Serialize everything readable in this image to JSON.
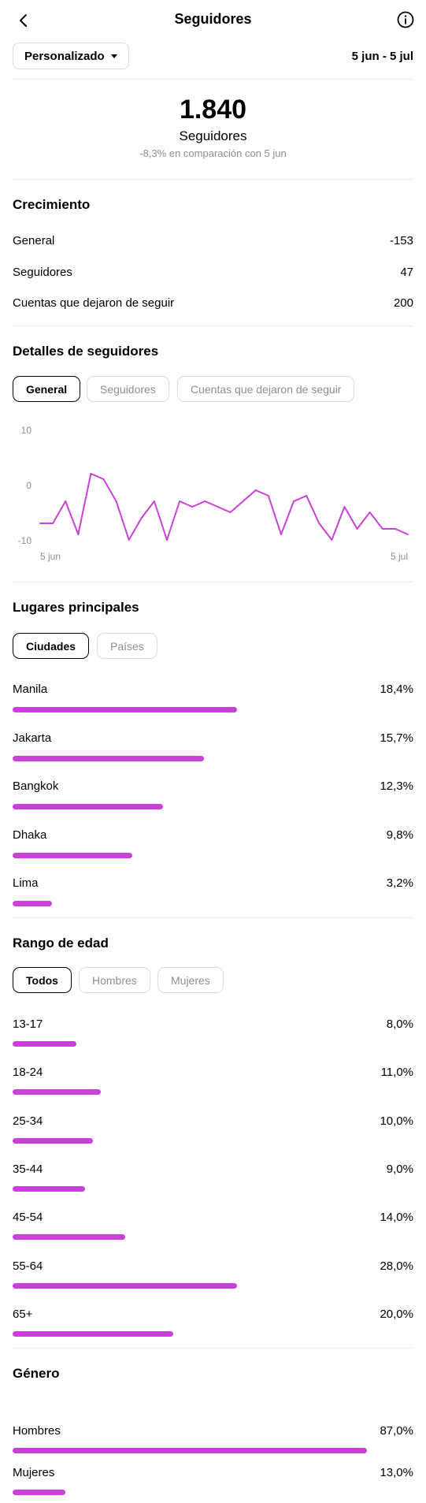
{
  "header": {
    "title": "Seguidores",
    "back_icon": "back-arrow-icon",
    "info_icon": "info-icon"
  },
  "filter": {
    "selected": "Personalizado",
    "date_range": "5 jun - 5 jul"
  },
  "summary": {
    "count": "1.840",
    "label": "Seguidores",
    "comparison": "-8,3% en comparación con 5 jun"
  },
  "growth": {
    "title": "Crecimiento",
    "rows": [
      {
        "label": "General",
        "value": "-153"
      },
      {
        "label": "Seguidores",
        "value": "47"
      },
      {
        "label": "Cuentas que dejaron de seguir",
        "value": "200"
      }
    ]
  },
  "details": {
    "title": "Detalles de seguidores",
    "tabs": [
      "General",
      "Seguidores",
      "Cuentas que dejaron de seguir"
    ],
    "active_tab": 0
  },
  "chart_data": {
    "type": "line",
    "x_start_label": "5 jun",
    "x_end_label": "5 jul",
    "y_ticks": [
      "10",
      "0",
      "-10"
    ],
    "ylim": [
      -10,
      10
    ],
    "grid": false,
    "color": "#c941d9",
    "values": [
      -7,
      -7,
      -3,
      -9,
      2,
      1,
      -3,
      -10,
      -6,
      -3,
      -10,
      -3,
      -4,
      -3,
      -4,
      -5,
      -3,
      -1,
      -2,
      -9,
      -3,
      -2,
      -7,
      -10,
      -4,
      -8,
      -5,
      -8,
      -8,
      -9
    ]
  },
  "places": {
    "title": "Lugares principales",
    "tabs": [
      "Ciudades",
      "Países"
    ],
    "active_tab": 0,
    "items": [
      {
        "label": "Manila",
        "value": "18,4%",
        "fraction": 0.184
      },
      {
        "label": "Jakarta",
        "value": "15,7%",
        "fraction": 0.157
      },
      {
        "label": "Bangkok",
        "value": "12,3%",
        "fraction": 0.123
      },
      {
        "label": "Dhaka",
        "value": "9,8%",
        "fraction": 0.098
      },
      {
        "label": "Lima",
        "value": "3,2%",
        "fraction": 0.032
      }
    ]
  },
  "age": {
    "title": "Rango de edad",
    "tabs": [
      "Todos",
      "Hombres",
      "Mujeres"
    ],
    "active_tab": 0,
    "items": [
      {
        "label": "13-17",
        "value": "8,0%",
        "fraction": 0.08
      },
      {
        "label": "18-24",
        "value": "11,0%",
        "fraction": 0.11
      },
      {
        "label": "25-34",
        "value": "10,0%",
        "fraction": 0.1
      },
      {
        "label": "35-44",
        "value": "9,0%",
        "fraction": 0.09
      },
      {
        "label": "45-54",
        "value": "14,0%",
        "fraction": 0.14
      },
      {
        "label": "55-64",
        "value": "28,0%",
        "fraction": 0.28
      },
      {
        "label": "65+",
        "value": "20,0%",
        "fraction": 0.2
      }
    ]
  },
  "gender": {
    "title": "Género",
    "items": [
      {
        "label": "Hombres",
        "value": "87,0%",
        "fraction": 0.87
      },
      {
        "label": "Mujeres",
        "value": "13,0%",
        "fraction": 0.13
      }
    ]
  },
  "colors": {
    "accent": "#c941d9",
    "muted_text": "#8e8e8e",
    "divider": "#ececec",
    "border": "#dbdbdb"
  }
}
